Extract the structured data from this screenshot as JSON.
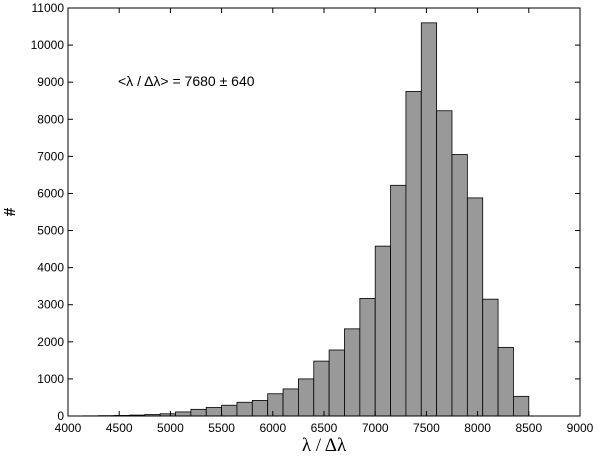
{
  "chart_data": {
    "type": "bar",
    "xlabel": "λ / Δλ",
    "ylabel": "#",
    "annotation": "<λ / Δλ> = 7680 ± 640",
    "xlim": [
      4000,
      9000
    ],
    "ylim": [
      0,
      11000
    ],
    "x_ticks": [
      4000,
      4500,
      5000,
      5500,
      6000,
      6500,
      7000,
      7500,
      8000,
      8500,
      9000
    ],
    "y_ticks": [
      0,
      1000,
      2000,
      3000,
      4000,
      5000,
      6000,
      7000,
      8000,
      9000,
      10000,
      11000
    ],
    "bin_width": 150,
    "bin_start": 4150,
    "values": [
      5,
      10,
      15,
      25,
      40,
      60,
      110,
      180,
      230,
      290,
      370,
      420,
      600,
      730,
      1000,
      1480,
      1780,
      2350,
      3170,
      4580,
      6220,
      8750,
      10600,
      8230,
      7050,
      5880,
      3150,
      1850,
      530
    ],
    "bar_color": "#999999",
    "grid": false
  }
}
